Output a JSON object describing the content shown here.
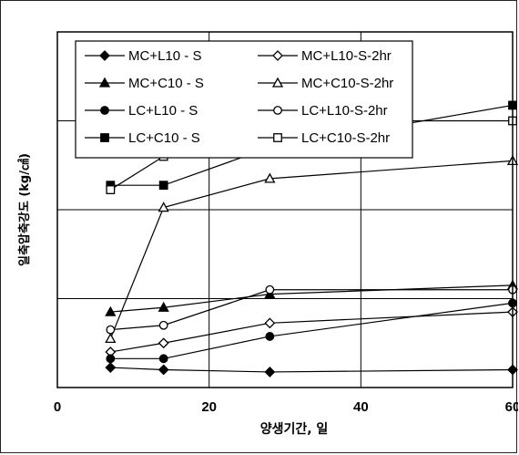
{
  "chart_data": {
    "type": "line",
    "title": "",
    "xlabel": "양생기간, 일",
    "ylabel": "일축압축강도 (kg/㎠)",
    "xlim": [
      0,
      60
    ],
    "ylim": [
      0,
      80
    ],
    "xticks": [
      0,
      20,
      40,
      60
    ],
    "x_tick_labels": [
      "0",
      "20",
      "40",
      "60"
    ],
    "grid": true,
    "legend_position": "top-left",
    "series": [
      {
        "name": "MC+L10 - S",
        "marker": "diamond",
        "filled": true,
        "x": [
          7,
          14,
          28,
          60
        ],
        "y": [
          4.5,
          4.0,
          3.5,
          4.0
        ]
      },
      {
        "name": "MC+L10-S-2hr",
        "marker": "diamond",
        "filled": false,
        "x": [
          7,
          14,
          28,
          60
        ],
        "y": [
          8.0,
          10.0,
          14.5,
          17.0
        ]
      },
      {
        "name": "MC+C10 - S",
        "marker": "triangle",
        "filled": true,
        "x": [
          7,
          14,
          28,
          60
        ],
        "y": [
          17.0,
          18.0,
          21.0,
          23.0
        ]
      },
      {
        "name": "MC+C10-S-2hr",
        "marker": "triangle",
        "filled": false,
        "x": [
          7,
          14,
          28,
          60
        ],
        "y": [
          11.0,
          40.5,
          47.0,
          51.0
        ]
      },
      {
        "name": "LC+L10 - S",
        "marker": "circle",
        "filled": true,
        "x": [
          7,
          14,
          28,
          60
        ],
        "y": [
          6.5,
          6.5,
          11.5,
          19.0
        ]
      },
      {
        "name": "LC+L10-S-2hr",
        "marker": "circle",
        "filled": false,
        "x": [
          7,
          14,
          28,
          60
        ],
        "y": [
          13.0,
          14.0,
          22.0,
          22.0
        ]
      },
      {
        "name": "LC+C10 - S",
        "marker": "square",
        "filled": true,
        "x": [
          7,
          14,
          28,
          60
        ],
        "y": [
          45.5,
          45.5,
          54.0,
          63.5
        ]
      },
      {
        "name": "LC+C10-S-2hr",
        "marker": "square",
        "filled": false,
        "x": [
          7,
          14,
          28,
          60
        ],
        "y": [
          44.5,
          52.0,
          60.0,
          60.0
        ]
      }
    ]
  }
}
